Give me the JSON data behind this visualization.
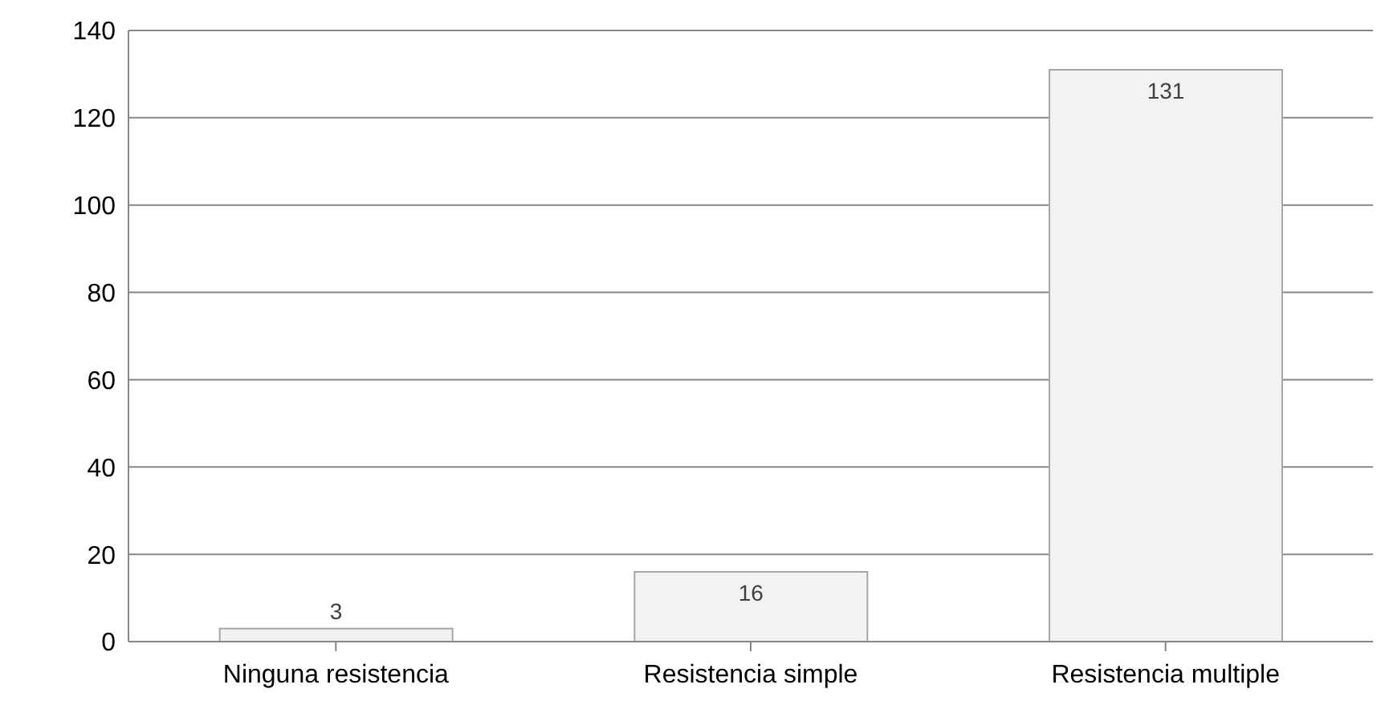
{
  "chart_data": {
    "type": "bar",
    "categories": [
      "Ninguna resistencia",
      "Resistencia simple",
      "Resistencia multiple"
    ],
    "values": [
      3,
      16,
      131
    ],
    "color": "#f2f2f2",
    "ylim": [
      0,
      140
    ],
    "yticks": [
      0,
      20,
      40,
      60,
      80,
      100,
      120,
      140
    ],
    "grid": "y",
    "data_labels": true
  }
}
